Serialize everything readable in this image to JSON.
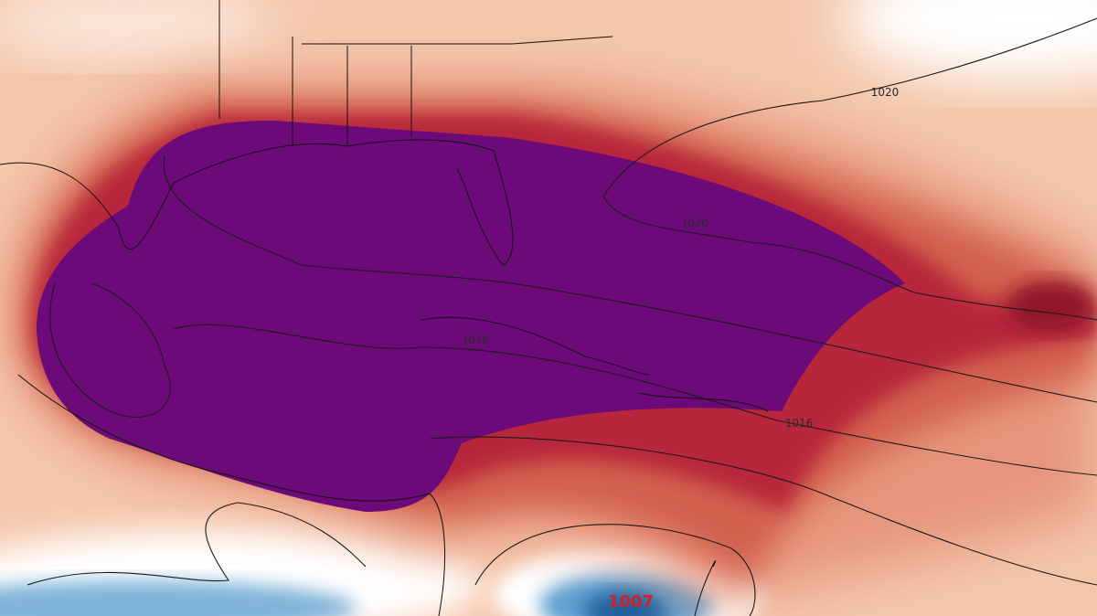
{
  "isobar_labels": [
    "1020",
    "1020",
    "1016",
    "1016"
  ],
  "low_center_label": "1007"
}
